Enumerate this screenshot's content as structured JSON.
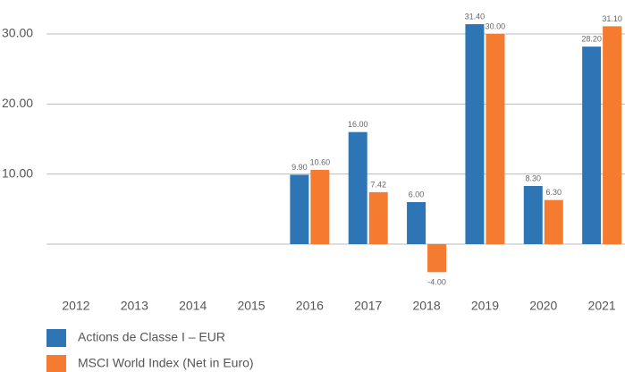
{
  "chart_data": {
    "type": "bar",
    "categories": [
      "2012",
      "2013",
      "2014",
      "2015",
      "2016",
      "2017",
      "2018",
      "2019",
      "2020",
      "2021"
    ],
    "series": [
      {
        "name": "Actions de Classe I – EUR",
        "color": "#2e75b6",
        "values": [
          null,
          null,
          null,
          null,
          9.9,
          16,
          6,
          31.4,
          8.3,
          28.2
        ],
        "value_labels": [
          null,
          null,
          null,
          null,
          "9.90",
          "16.00",
          "6.00",
          "31.40",
          "8.30",
          "28.20"
        ]
      },
      {
        "name": "MSCI World Index (Net in Euro)",
        "color": "#f47b2f",
        "values": [
          null,
          null,
          null,
          null,
          10.6,
          7.42,
          -4,
          30,
          6.3,
          31.1
        ],
        "value_labels": [
          null,
          null,
          null,
          null,
          "10.60",
          "7.42",
          "-4.00",
          "30.00",
          "6.30",
          "31.10"
        ]
      }
    ],
    "ylim": [
      -6,
      34
    ],
    "yticks": [
      {
        "value": 10,
        "label": "10.00"
      },
      {
        "value": 20,
        "label": "20.00"
      },
      {
        "value": 30,
        "label": "30.00"
      }
    ],
    "grid": true
  }
}
